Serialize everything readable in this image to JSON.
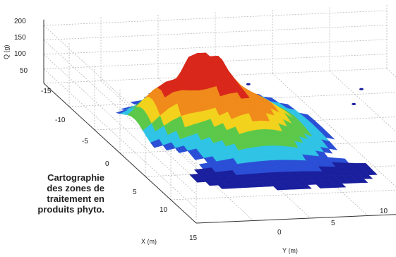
{
  "caption": {
    "lines": [
      "Cartographie",
      "des zones de",
      "traitement en",
      "produits phyto."
    ]
  },
  "colors": {
    "deep": "#1a1f9e",
    "blue": "#2a4fd6",
    "cyan": "#2fc3e6",
    "green": "#5cc84a",
    "yellow": "#f2d21c",
    "orange": "#f08a1a",
    "red": "#d9281b"
  },
  "chart_data": {
    "type": "surface",
    "title": "",
    "xlabel": "X (m)",
    "ylabel": "Y (m)",
    "zlabel": "Q (g)",
    "x_ticks": [
      "-15",
      "-10",
      "-5",
      "0",
      "5",
      "10",
      "15"
    ],
    "y_ticks": [
      "0",
      "5",
      "10"
    ],
    "z_ticks": [
      "50",
      "100",
      "150",
      "200"
    ],
    "xlim": [
      -15,
      15
    ],
    "ylim": [
      -15,
      15
    ],
    "zlim": [
      0,
      220
    ],
    "grid": true,
    "peak": {
      "x": -5,
      "y": -3,
      "q": 200
    },
    "blobs": [
      {
        "x": -6,
        "y": -5,
        "q": 200,
        "sx": 1.6,
        "sy": 1.4
      },
      {
        "x": -4,
        "y": -9,
        "q": 140,
        "sx": 2.0,
        "sy": 2.0
      },
      {
        "x": -2,
        "y": -3,
        "q": 90,
        "sx": 2.6,
        "sy": 2.8
      },
      {
        "x": -5,
        "y": -3,
        "q": 60,
        "sx": 4.5,
        "sy": 4.0
      },
      {
        "x": 2,
        "y": -4,
        "q": 30,
        "sx": 2.5,
        "sy": 4.5
      }
    ]
  }
}
